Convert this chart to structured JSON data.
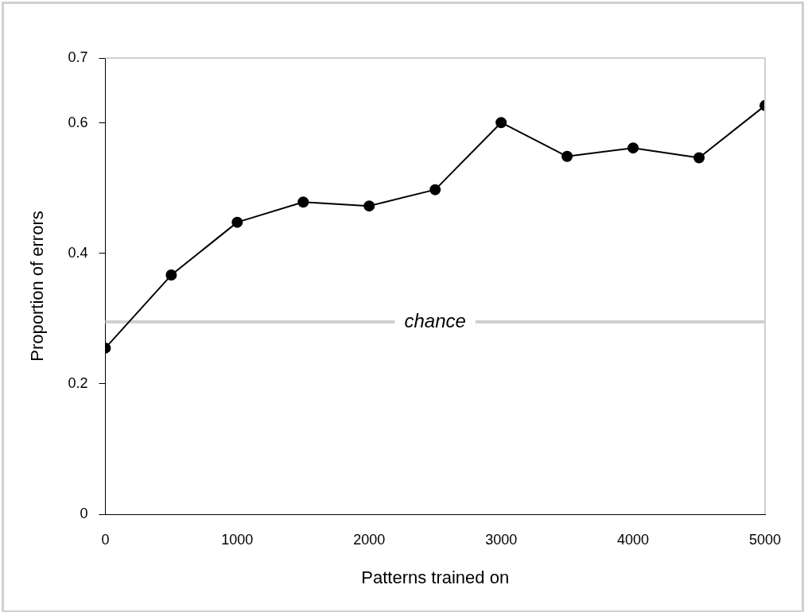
{
  "chart_data": {
    "type": "line",
    "xlabel": "Patterns trained on",
    "ylabel": "Proportion of errors",
    "x": [
      0,
      500,
      1000,
      1500,
      2000,
      2500,
      3000,
      3500,
      4000,
      4500,
      5000
    ],
    "series": [
      {
        "color": "#000000",
        "values": [
          0.255,
          0.367,
          0.448,
          0.479,
          0.473,
          0.498,
          0.601,
          0.549,
          0.562,
          0.547,
          0.627
        ]
      }
    ],
    "xlim": [
      0,
      5000
    ],
    "xticks": [
      0,
      1000,
      2000,
      3000,
      4000,
      5000
    ],
    "ylim": [
      0,
      0.7
    ],
    "yticks": [
      0,
      0.2,
      0.4,
      0.6,
      0.7
    ],
    "ref_lines": [
      {
        "axis": "y",
        "value": 0.295,
        "label": "chance",
        "color": "#d0d0d0"
      }
    ],
    "grid": false,
    "legend": false,
    "marker": "circle",
    "line_style": "solid"
  }
}
